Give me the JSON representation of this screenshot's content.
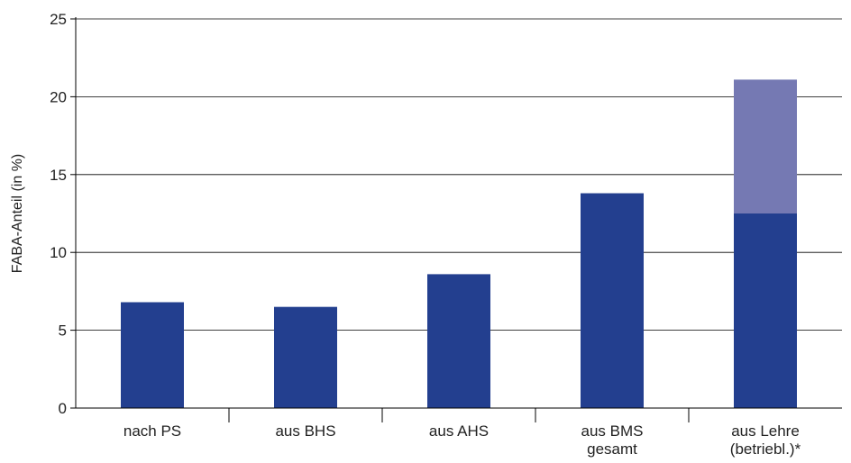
{
  "chart_data": {
    "type": "bar",
    "stacked": true,
    "title": "",
    "xlabel": "",
    "ylabel": "FABA-Anteil (in %)",
    "ylim": [
      0,
      25
    ],
    "yticks": [
      0,
      5,
      10,
      15,
      20,
      25
    ],
    "grid": true,
    "legend": "none",
    "categories": [
      [
        "nach PS"
      ],
      [
        "aus BHS"
      ],
      [
        "aus AHS"
      ],
      [
        "aus BMS",
        "gesamt"
      ],
      [
        "aus Lehre",
        "(betriebl.)*"
      ]
    ],
    "series": [
      {
        "values": [
          6.8,
          6.5,
          8.6,
          13.8,
          12.5
        ],
        "color": "#233f8f"
      },
      {
        "values": [
          0,
          0,
          0,
          0,
          8.6
        ],
        "color": "#7579b3"
      }
    ],
    "colors": {
      "axis": "#000000",
      "grid": "#000000",
      "text": "#222222"
    }
  }
}
